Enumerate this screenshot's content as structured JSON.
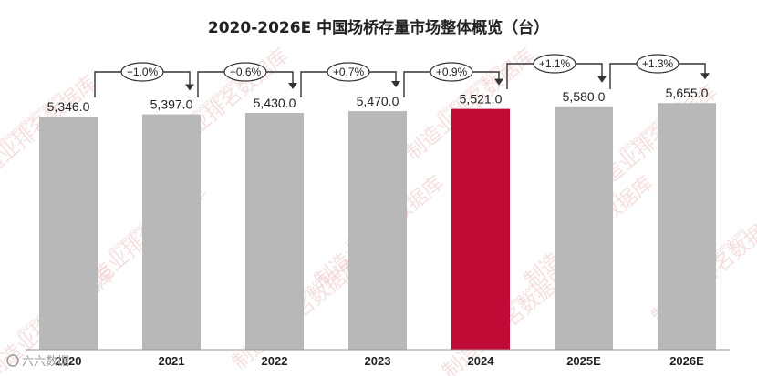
{
  "chart_data": {
    "type": "bar",
    "title": "2020-2026E 中国场桥存量市场整体概览（台）",
    "categories": [
      "2020",
      "2021",
      "2022",
      "2023",
      "2024",
      "2025E",
      "2026E"
    ],
    "values": [
      5346.0,
      5397.0,
      5430.0,
      5470.0,
      5521.0,
      5580.0,
      5655.0
    ],
    "value_labels": [
      "5,346.0",
      "5,397.0",
      "5,430.0",
      "5,470.0",
      "5,521.0",
      "5,580.0",
      "5,655.0"
    ],
    "growth_labels": [
      "+1.0%",
      "+0.6%",
      "+0.7%",
      "+0.9%",
      "+1.1%",
      "+1.3%"
    ],
    "highlight_category": "2024",
    "colors": {
      "bar": "#b8b8b8",
      "highlight": "#c00b36",
      "text": "#222222"
    },
    "xlabel": "",
    "ylabel": "",
    "ylim": [
      0,
      5800
    ],
    "grid": false,
    "legend": "none"
  },
  "watermark": {
    "text": "制造业排名数据库",
    "url": "zhizaoyepaiming.com",
    "brand": "六六数据"
  }
}
